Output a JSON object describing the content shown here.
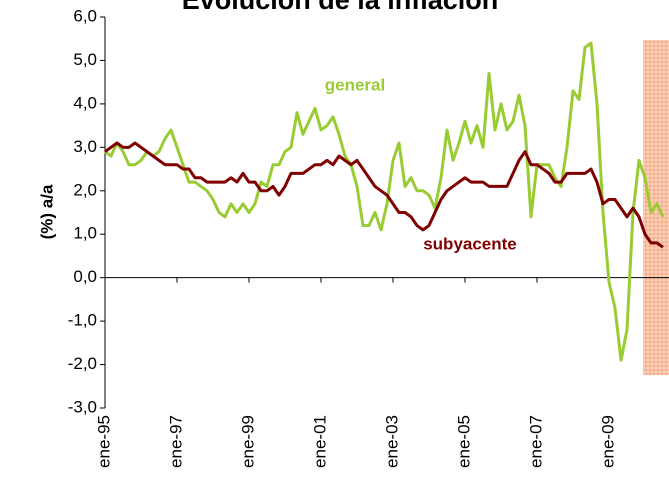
{
  "chart_data": {
    "type": "line",
    "title": "Evolución de la inflación",
    "y_label": "(%) a/a",
    "categories": [
      "ene-95",
      null,
      null,
      null,
      null,
      null,
      null,
      null,
      null,
      null,
      null,
      null,
      "ene-97",
      null,
      null,
      null,
      null,
      null,
      null,
      null,
      null,
      null,
      null,
      null,
      "ene-99",
      null,
      null,
      null,
      null,
      null,
      null,
      null,
      null,
      null,
      null,
      null,
      "ene-01",
      null,
      null,
      null,
      null,
      null,
      null,
      null,
      null,
      null,
      null,
      null,
      "ene-03",
      null,
      null,
      null,
      null,
      null,
      null,
      null,
      null,
      null,
      null,
      null,
      "ene-05",
      null,
      null,
      null,
      null,
      null,
      null,
      null,
      null,
      null,
      null,
      null,
      "ene-07",
      null,
      null,
      null,
      null,
      null,
      null,
      null,
      null,
      null,
      null,
      null,
      "ene-09",
      null,
      null,
      null,
      null,
      null,
      null,
      null,
      null,
      null
    ],
    "series": [
      {
        "name": "general",
        "color": "#99cc33",
        "values": [
          2.9,
          2.8,
          3.1,
          2.9,
          2.6,
          2.6,
          2.7,
          2.9,
          2.8,
          2.9,
          3.2,
          3.4,
          3.0,
          2.6,
          2.2,
          2.2,
          2.1,
          2.0,
          1.8,
          1.5,
          1.4,
          1.7,
          1.5,
          1.7,
          1.5,
          1.7,
          2.2,
          2.1,
          2.6,
          2.6,
          2.9,
          3.0,
          3.8,
          3.3,
          3.6,
          3.9,
          3.4,
          3.5,
          3.7,
          3.3,
          2.8,
          2.6,
          2.1,
          1.2,
          1.2,
          1.5,
          1.1,
          1.7,
          2.7,
          3.1,
          2.1,
          2.3,
          2.0,
          2.0,
          1.9,
          1.6,
          2.3,
          3.4,
          2.7,
          3.1,
          3.6,
          3.1,
          3.5,
          3.0,
          4.7,
          3.4,
          4.0,
          3.4,
          3.6,
          4.2,
          3.5,
          1.4,
          2.6,
          2.6,
          2.6,
          2.3,
          2.1,
          3.0,
          4.3,
          4.1,
          5.3,
          5.4,
          4.0,
          1.5,
          -0.1,
          -0.7,
          -1.9,
          -1.2,
          1.5,
          2.7,
          2.3,
          1.5,
          1.7,
          1.4
        ]
      },
      {
        "name": "subyacente",
        "color": "#800000",
        "values": [
          2.9,
          3.0,
          3.1,
          3.0,
          3.0,
          3.1,
          3.0,
          2.9,
          2.8,
          2.7,
          2.6,
          2.6,
          2.6,
          2.5,
          2.5,
          2.3,
          2.3,
          2.2,
          2.2,
          2.2,
          2.2,
          2.3,
          2.2,
          2.4,
          2.2,
          2.2,
          2.0,
          2.0,
          2.1,
          1.9,
          2.1,
          2.4,
          2.4,
          2.4,
          2.5,
          2.6,
          2.6,
          2.7,
          2.6,
          2.8,
          2.7,
          2.6,
          2.7,
          2.5,
          2.3,
          2.1,
          2.0,
          1.9,
          1.7,
          1.5,
          1.5,
          1.4,
          1.2,
          1.1,
          1.2,
          1.5,
          1.8,
          2.0,
          2.1,
          2.2,
          2.3,
          2.2,
          2.2,
          2.2,
          2.1,
          2.1,
          2.1,
          2.1,
          2.4,
          2.7,
          2.9,
          2.6,
          2.6,
          2.5,
          2.4,
          2.2,
          2.2,
          2.4,
          2.4,
          2.4,
          2.4,
          2.5,
          2.2,
          1.7,
          1.8,
          1.8,
          1.6,
          1.4,
          1.6,
          1.4,
          1.0,
          0.8,
          0.8,
          0.7
        ]
      }
    ],
    "ylim": [
      -3,
      6
    ],
    "yticks": [
      {
        "value": 6,
        "label": "6,0"
      },
      {
        "value": 5,
        "label": "5,0"
      },
      {
        "value": 4,
        "label": "4,0"
      },
      {
        "value": 3,
        "label": "3,0"
      },
      {
        "value": 2,
        "label": "2,0"
      },
      {
        "value": 1,
        "label": "1,0"
      },
      {
        "value": 0,
        "label": "0,0"
      },
      {
        "value": -1,
        "label": "-1,0"
      },
      {
        "value": -2,
        "label": "-2,0"
      },
      {
        "value": -3,
        "label": "-3,0"
      }
    ],
    "grid": false
  }
}
